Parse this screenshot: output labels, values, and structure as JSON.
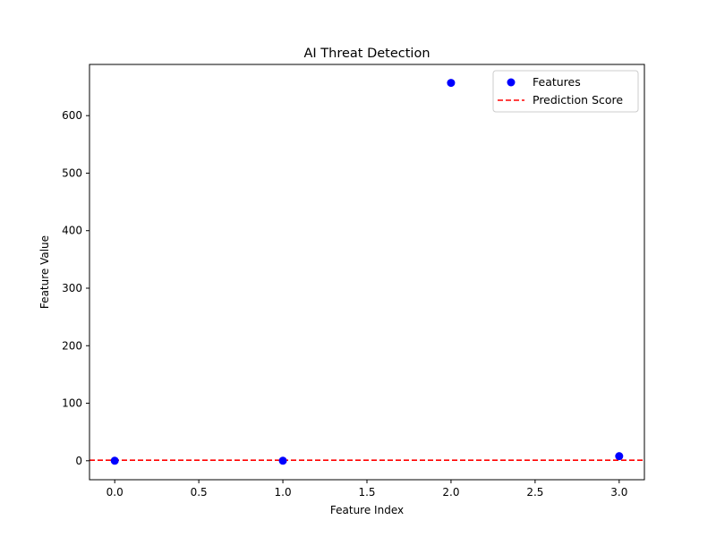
{
  "chart_data": {
    "type": "scatter",
    "title": "AI Threat Detection",
    "xlabel": "Feature Index",
    "ylabel": "Feature Value",
    "xlim": [
      -0.15,
      3.15
    ],
    "ylim": [
      -33,
      689
    ],
    "x_ticks": [
      0.0,
      0.5,
      1.0,
      1.5,
      2.0,
      2.5,
      3.0
    ],
    "x_tick_labels": [
      "0.0",
      "0.5",
      "1.0",
      "1.5",
      "2.0",
      "2.5",
      "3.0"
    ],
    "y_ticks": [
      0,
      100,
      200,
      300,
      400,
      500,
      600
    ],
    "y_tick_labels": [
      "0",
      "100",
      "200",
      "300",
      "400",
      "500",
      "600"
    ],
    "grid": false,
    "legend_position": "top-right",
    "series": [
      {
        "name": "Features",
        "kind": "scatter",
        "color": "#0000ff",
        "x": [
          0,
          1,
          2,
          3
        ],
        "y": [
          0,
          0,
          657,
          8
        ]
      },
      {
        "name": "Prediction Score",
        "kind": "hline",
        "color": "#ff0000",
        "linestyle": "dashed",
        "y": 1
      }
    ]
  }
}
